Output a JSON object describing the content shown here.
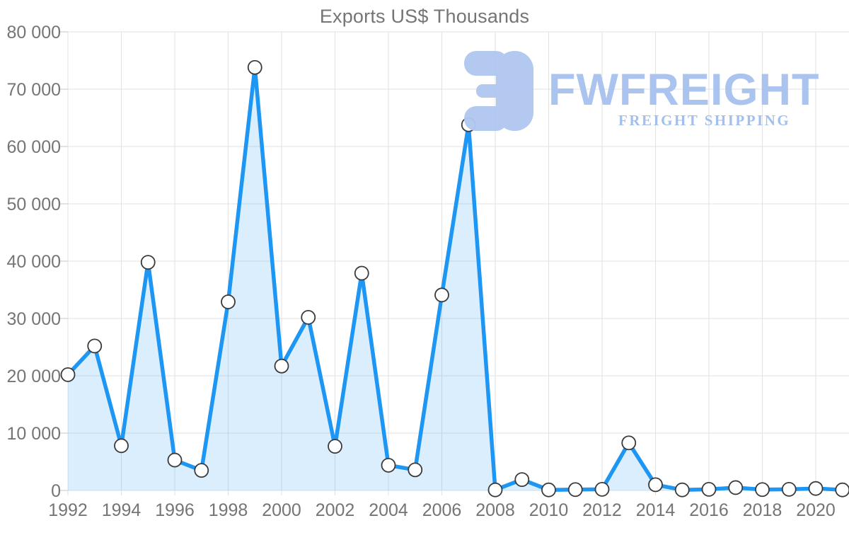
{
  "title": "Exports US$ Thousands",
  "watermark": {
    "brand": "FWFREIGHT",
    "tagline": "FREIGHT SHIPPING",
    "icon": "freight-logo-mark",
    "color": "#b0c7f0"
  },
  "chart_data": {
    "type": "area",
    "title": "Exports US$ Thousands",
    "xlabel": "",
    "ylabel": "",
    "x": [
      1992,
      1993,
      1994,
      1995,
      1996,
      1997,
      1998,
      1999,
      2000,
      2001,
      2002,
      2003,
      2004,
      2005,
      2006,
      2007,
      2008,
      2009,
      2010,
      2011,
      2012,
      2013,
      2014,
      2015,
      2016,
      2017,
      2018,
      2019,
      2020,
      2021
    ],
    "series": [
      {
        "name": "Exports US$ Thousands",
        "values": [
          20200,
          25200,
          7800,
          39800,
          5300,
          3500,
          32900,
          73800,
          21700,
          30200,
          7700,
          37900,
          4400,
          3600,
          34100,
          63800,
          100,
          1900,
          100,
          150,
          200,
          8300,
          1000,
          100,
          200,
          500,
          150,
          200,
          350,
          100
        ]
      }
    ],
    "ylim": [
      0,
      80000
    ],
    "y_tick_step": 10000,
    "y_tick_labels": [
      "0",
      "10 000",
      "20 000",
      "30 000",
      "40 000",
      "50 000",
      "60 000",
      "70 000",
      "80 000"
    ],
    "x_tick_labels": [
      "1992",
      "1994",
      "1996",
      "1998",
      "2000",
      "2002",
      "2004",
      "2006",
      "2008",
      "2010",
      "2012",
      "2014",
      "2016",
      "2018",
      "2020"
    ],
    "grid": true,
    "legend_position": "none",
    "colors": {
      "line": "#1e96f3",
      "area_fill": "rgba(30,150,243,0.16)",
      "marker_fill": "#ffffff",
      "marker_stroke": "#3a3a3a",
      "grid": "#e2e2e2",
      "tick": "#c6c6c6",
      "tick_text": "#757575",
      "title_text": "#757575"
    }
  }
}
